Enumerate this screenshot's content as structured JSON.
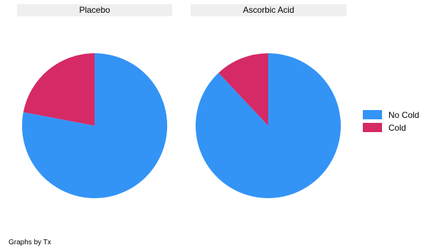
{
  "chart_data": {
    "type": "pie",
    "panels": [
      {
        "title": "Placebo",
        "slices": [
          {
            "label": "No Cold",
            "value": 78,
            "color": "#3394f6"
          },
          {
            "label": "Cold",
            "value": 22,
            "color": "#d52a66"
          }
        ]
      },
      {
        "title": "Ascorbic Acid",
        "slices": [
          {
            "label": "No Cold",
            "value": 88,
            "color": "#3394f6"
          },
          {
            "label": "Cold",
            "value": 12,
            "color": "#d52a66"
          }
        ]
      }
    ],
    "legend": {
      "position": "right",
      "entries": [
        {
          "label": "No Cold",
          "color": "#3394f6"
        },
        {
          "label": "Cold",
          "color": "#d52a66"
        }
      ]
    },
    "note": "Graphs by Tx"
  }
}
